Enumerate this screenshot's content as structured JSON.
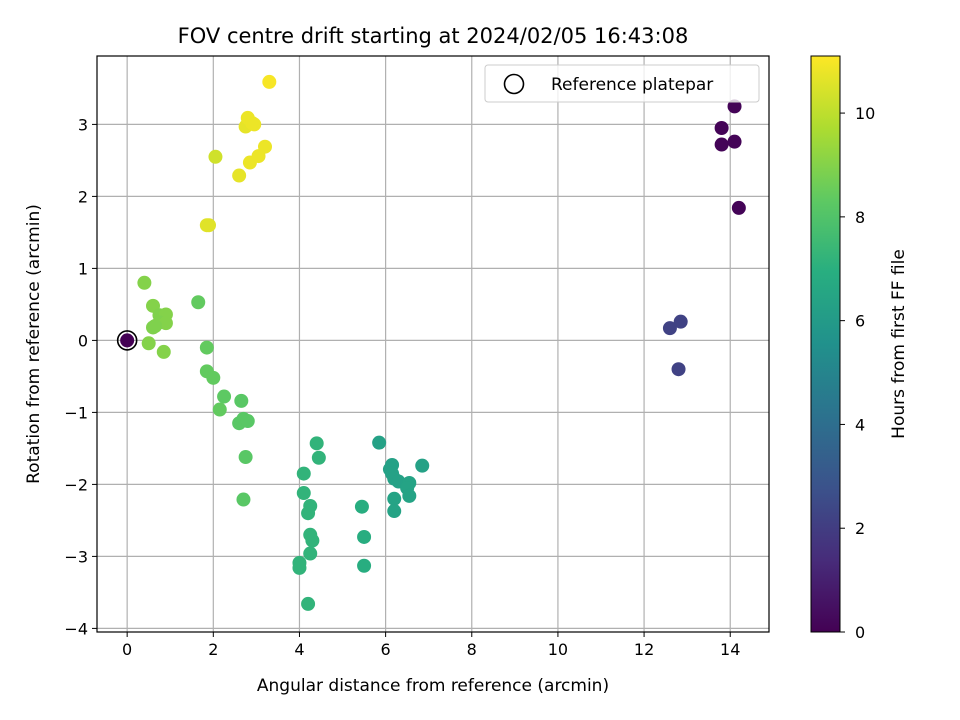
{
  "chart_data": {
    "type": "scatter",
    "title": "FOV centre drift starting at 2024/02/05 16:43:08",
    "xlabel": "Angular distance from reference (arcmin)",
    "ylabel": "Rotation from reference (arcmin)",
    "xlim": [
      -0.7,
      14.9
    ],
    "ylim": [
      -4.05,
      3.95
    ],
    "xticks": [
      0,
      2,
      4,
      6,
      8,
      10,
      12,
      14
    ],
    "yticks": [
      -4,
      -3,
      -2,
      -1,
      0,
      1,
      2,
      3
    ],
    "grid": true,
    "legend": {
      "placement": "top-right",
      "entries": [
        "Reference platepar"
      ]
    },
    "colorbar": {
      "label": "Hours from first FF file",
      "colormap": "viridis",
      "range": [
        0,
        11.1
      ],
      "ticks": [
        0,
        2,
        4,
        6,
        8,
        10
      ]
    },
    "series": [
      {
        "points": [
          {
            "x": 13.8,
            "y": 2.95,
            "t": 0.1
          },
          {
            "x": 14.1,
            "y": 3.25,
            "t": 0.1
          },
          {
            "x": 13.8,
            "y": 2.72,
            "t": 0.1
          },
          {
            "x": 14.1,
            "y": 2.76,
            "t": 0.1
          },
          {
            "x": 14.2,
            "y": 1.84,
            "t": 0.1
          },
          {
            "x": 12.6,
            "y": 0.17,
            "t": 2.2
          },
          {
            "x": 12.85,
            "y": 0.26,
            "t": 2.2
          },
          {
            "x": 12.8,
            "y": -0.4,
            "t": 2.2
          },
          {
            "x": 5.85,
            "y": -1.42,
            "t": 6.3
          },
          {
            "x": 6.15,
            "y": -1.73,
            "t": 6.3
          },
          {
            "x": 6.1,
            "y": -1.79,
            "t": 6.3
          },
          {
            "x": 6.15,
            "y": -1.85,
            "t": 6.3
          },
          {
            "x": 6.2,
            "y": -1.92,
            "t": 6.3
          },
          {
            "x": 6.3,
            "y": -1.96,
            "t": 6.3
          },
          {
            "x": 6.55,
            "y": -1.98,
            "t": 6.4
          },
          {
            "x": 6.5,
            "y": -2.05,
            "t": 6.4
          },
          {
            "x": 6.2,
            "y": -2.2,
            "t": 6.4
          },
          {
            "x": 6.55,
            "y": -2.16,
            "t": 6.4
          },
          {
            "x": 6.2,
            "y": -2.37,
            "t": 6.4
          },
          {
            "x": 6.85,
            "y": -1.74,
            "t": 6.3
          },
          {
            "x": 5.45,
            "y": -2.31,
            "t": 6.9
          },
          {
            "x": 5.5,
            "y": -2.73,
            "t": 6.9
          },
          {
            "x": 5.5,
            "y": -3.13,
            "t": 6.9
          },
          {
            "x": 4.4,
            "y": -1.43,
            "t": 7.2
          },
          {
            "x": 4.45,
            "y": -1.63,
            "t": 7.2
          },
          {
            "x": 4.1,
            "y": -1.85,
            "t": 7.2
          },
          {
            "x": 4.1,
            "y": -2.12,
            "t": 7.2
          },
          {
            "x": 4.25,
            "y": -2.3,
            "t": 7.2
          },
          {
            "x": 4.2,
            "y": -2.4,
            "t": 7.2
          },
          {
            "x": 4.25,
            "y": -2.7,
            "t": 7.2
          },
          {
            "x": 4.3,
            "y": -2.78,
            "t": 7.2
          },
          {
            "x": 4.25,
            "y": -2.96,
            "t": 7.2
          },
          {
            "x": 4.0,
            "y": -3.09,
            "t": 7.2
          },
          {
            "x": 4.0,
            "y": -3.16,
            "t": 7.2
          },
          {
            "x": 4.2,
            "y": -3.66,
            "t": 7.2
          },
          {
            "x": 1.65,
            "y": 0.53,
            "t": 8.4
          },
          {
            "x": 1.85,
            "y": -0.1,
            "t": 8.4
          },
          {
            "x": 1.85,
            "y": -0.43,
            "t": 8.4
          },
          {
            "x": 2.0,
            "y": -0.52,
            "t": 8.4
          },
          {
            "x": 2.25,
            "y": -0.78,
            "t": 8.3
          },
          {
            "x": 2.65,
            "y": -0.84,
            "t": 8.2
          },
          {
            "x": 2.15,
            "y": -0.96,
            "t": 8.4
          },
          {
            "x": 2.6,
            "y": -1.15,
            "t": 8.2
          },
          {
            "x": 2.7,
            "y": -1.09,
            "t": 8.2
          },
          {
            "x": 2.8,
            "y": -1.12,
            "t": 8.2
          },
          {
            "x": 2.75,
            "y": -1.62,
            "t": 8.2
          },
          {
            "x": 2.7,
            "y": -2.21,
            "t": 8.2
          },
          {
            "x": 0.4,
            "y": 0.8,
            "t": 9.0
          },
          {
            "x": 0.6,
            "y": 0.48,
            "t": 9.0
          },
          {
            "x": 0.75,
            "y": 0.35,
            "t": 8.9
          },
          {
            "x": 0.9,
            "y": 0.36,
            "t": 9.0
          },
          {
            "x": 0.75,
            "y": 0.25,
            "t": 8.9
          },
          {
            "x": 0.9,
            "y": 0.24,
            "t": 9.0
          },
          {
            "x": 0.6,
            "y": 0.18,
            "t": 8.9
          },
          {
            "x": 0.65,
            "y": 0.2,
            "t": 8.9
          },
          {
            "x": 0.5,
            "y": -0.04,
            "t": 9.0
          },
          {
            "x": 0.85,
            "y": -0.16,
            "t": 9.0
          },
          {
            "x": 1.85,
            "y": 1.6,
            "t": 10.6
          },
          {
            "x": 1.9,
            "y": 1.6,
            "t": 10.6
          },
          {
            "x": 2.05,
            "y": 2.55,
            "t": 10.3
          },
          {
            "x": 2.6,
            "y": 2.29,
            "t": 10.7
          },
          {
            "x": 2.75,
            "y": 2.97,
            "t": 10.7
          },
          {
            "x": 2.8,
            "y": 3.09,
            "t": 10.8
          },
          {
            "x": 2.9,
            "y": 3.02,
            "t": 10.8
          },
          {
            "x": 2.95,
            "y": 3.0,
            "t": 10.8
          },
          {
            "x": 2.85,
            "y": 2.47,
            "t": 10.8
          },
          {
            "x": 3.05,
            "y": 2.56,
            "t": 10.8
          },
          {
            "x": 3.2,
            "y": 2.69,
            "t": 10.8
          },
          {
            "x": 3.3,
            "y": 3.59,
            "t": 11.0
          },
          {
            "x": 0.0,
            "y": 0.0,
            "t": 0.0
          }
        ]
      }
    ],
    "reference": {
      "x": 0.0,
      "y": 0.0
    }
  }
}
